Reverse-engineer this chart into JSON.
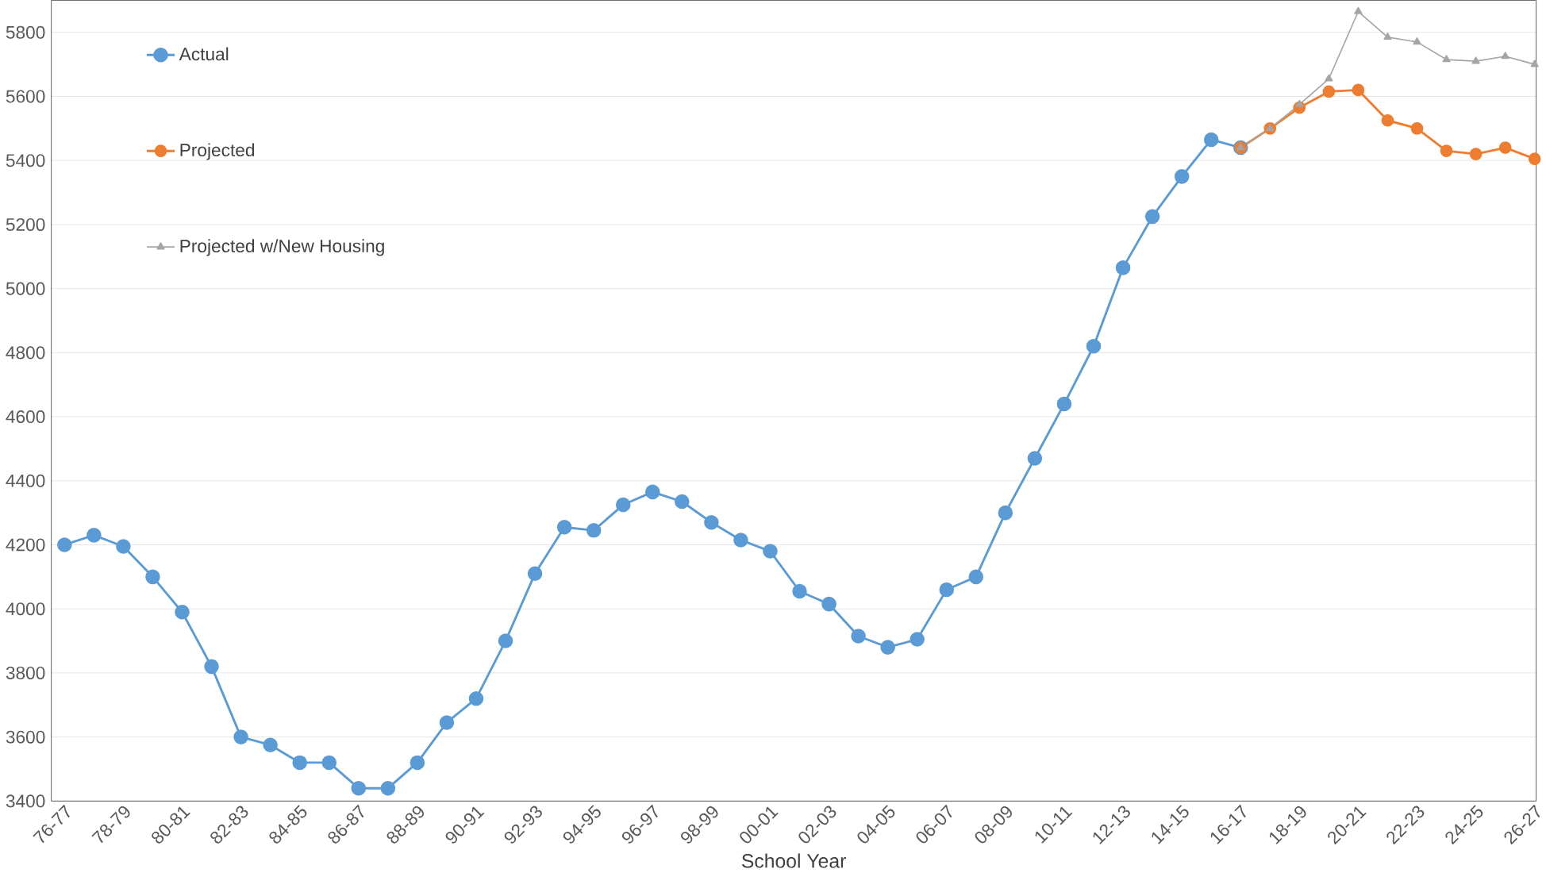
{
  "chart_data": {
    "type": "line",
    "xlabel": "School Year",
    "categories": [
      "76-77",
      null,
      "78-79",
      null,
      "80-81",
      null,
      "82-83",
      null,
      "84-85",
      null,
      "86-87",
      null,
      "88-89",
      null,
      "90-91",
      null,
      "92-93",
      null,
      "94-95",
      null,
      "96-97",
      null,
      "98-99",
      null,
      "00-01",
      null,
      "02-03",
      null,
      "04-05",
      null,
      "06-07",
      null,
      "08-09",
      null,
      "10-11",
      null,
      "12-13",
      null,
      "14-15",
      null,
      "16-17",
      null,
      "18-19",
      null,
      "20-21",
      null,
      "22-23",
      null,
      "24-25",
      null,
      "26-27"
    ],
    "series": [
      {
        "name": "Actual",
        "color": "#5b9bd5",
        "marker": "circle",
        "values": [
          4200,
          4230,
          4195,
          4100,
          3990,
          3820,
          3600,
          3575,
          3520,
          3520,
          3440,
          3440,
          3520,
          3645,
          3720,
          3900,
          4110,
          4255,
          4245,
          4325,
          4365,
          4335,
          4270,
          4215,
          4180,
          4055,
          4015,
          3915,
          3880,
          3905,
          4060,
          4100,
          4300,
          4470,
          4640,
          4820,
          5065,
          5225,
          5350,
          5465,
          5440,
          null,
          null,
          null,
          null,
          null,
          null,
          null,
          null,
          null,
          null
        ]
      },
      {
        "name": "Projected",
        "color": "#ed7d31",
        "marker": "circle",
        "values": [
          null,
          null,
          null,
          null,
          null,
          null,
          null,
          null,
          null,
          null,
          null,
          null,
          null,
          null,
          null,
          null,
          null,
          null,
          null,
          null,
          null,
          null,
          null,
          null,
          null,
          null,
          null,
          null,
          null,
          null,
          null,
          null,
          null,
          null,
          null,
          null,
          null,
          null,
          null,
          null,
          5440,
          5500,
          5565,
          5615,
          5620,
          5525,
          5500,
          5430,
          5420,
          5440,
          5405
        ]
      },
      {
        "name": "Projected w/New Housing",
        "color": "#a5a5a5",
        "marker": "triangle",
        "values": [
          null,
          null,
          null,
          null,
          null,
          null,
          null,
          null,
          null,
          null,
          null,
          null,
          null,
          null,
          null,
          null,
          null,
          null,
          null,
          null,
          null,
          null,
          null,
          null,
          null,
          null,
          null,
          null,
          null,
          null,
          null,
          null,
          null,
          null,
          null,
          null,
          null,
          null,
          null,
          null,
          5440,
          5500,
          5575,
          5655,
          5865,
          5785,
          5770,
          5715,
          5710,
          5725,
          5700
        ]
      }
    ],
    "ylim": [
      3400,
      5900
    ],
    "yticks": [
      3400,
      3600,
      3800,
      4000,
      4200,
      4400,
      4600,
      4800,
      5000,
      5200,
      5400,
      5600,
      5800
    ],
    "grid": "y",
    "legend": "top left",
    "line_style": "solid"
  }
}
